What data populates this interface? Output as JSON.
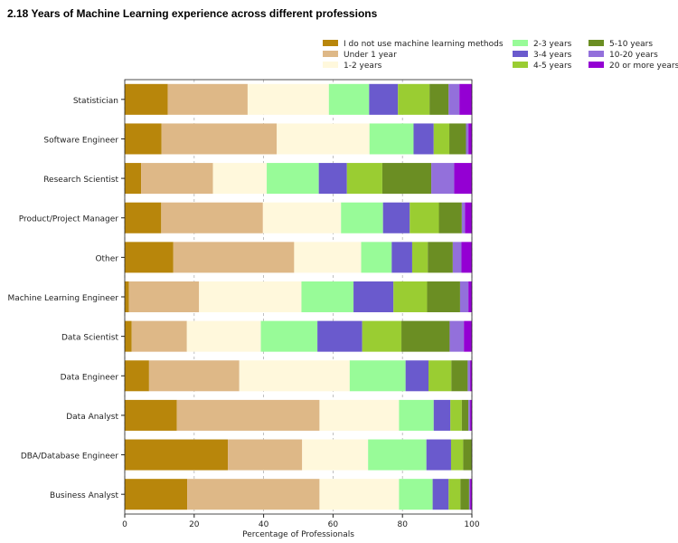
{
  "page": {
    "title": "2.18 Years of Machine Learning experience across different professions"
  },
  "chart_data": {
    "type": "bar",
    "orientation": "horizontal",
    "stacked": true,
    "title": "",
    "xlabel": "Percentage of Professionals",
    "ylabel": "",
    "xlim": [
      0,
      100
    ],
    "xticks": [
      0,
      20,
      40,
      60,
      80,
      100
    ],
    "grid": "vertical dashed",
    "legend_placement": "top-right",
    "categories": [
      "Statistician",
      "Software Engineer",
      "Research Scientist",
      "Product/Project Manager",
      "Other",
      "Machine Learning Engineer",
      "Data Scientist",
      "Data Engineer",
      "Data Analyst",
      "DBA/Database Engineer",
      "Business Analyst"
    ],
    "series": [
      {
        "name": "I do not use machine learning methods",
        "color": "#b8860b",
        "values": [
          12.4,
          10.6,
          4.7,
          10.5,
          14.0,
          1.2,
          2.0,
          7.0,
          15.0,
          29.7,
          18.0
        ]
      },
      {
        "name": "Under 1 year",
        "color": "#deb887",
        "values": [
          23.0,
          33.2,
          20.7,
          29.3,
          34.8,
          20.2,
          15.9,
          26.0,
          41.1,
          21.4,
          38.1
        ]
      },
      {
        "name": "1-2 years",
        "color": "#fff8dc",
        "values": [
          23.4,
          26.7,
          15.5,
          22.5,
          19.3,
          29.5,
          21.3,
          31.8,
          22.9,
          19.0,
          22.9
        ]
      },
      {
        "name": "2-3 years",
        "color": "#98fb98",
        "values": [
          11.6,
          12.7,
          15.0,
          12.1,
          8.8,
          15.0,
          16.3,
          16.1,
          10.0,
          16.8,
          9.7
        ]
      },
      {
        "name": "3-4 years",
        "color": "#6a5acd",
        "values": [
          8.3,
          5.8,
          8.1,
          7.7,
          5.9,
          11.5,
          12.9,
          6.6,
          4.8,
          7.1,
          4.6
        ]
      },
      {
        "name": "4-5 years",
        "color": "#9acd32",
        "values": [
          9.1,
          4.5,
          10.2,
          8.4,
          4.5,
          9.7,
          11.3,
          6.6,
          3.3,
          3.5,
          3.4
        ]
      },
      {
        "name": "5-10 years",
        "color": "#6b8e23",
        "values": [
          5.5,
          4.8,
          14.1,
          6.6,
          7.2,
          9.5,
          13.9,
          4.7,
          1.9,
          2.5,
          2.5
        ]
      },
      {
        "name": "10-20 years",
        "color": "#9370db",
        "values": [
          3.1,
          0.7,
          6.6,
          0.9,
          2.5,
          2.4,
          4.1,
          0.7,
          0.5,
          0.0,
          0.3
        ]
      },
      {
        "name": "20 or more years",
        "color": "#9400d3",
        "values": [
          3.6,
          1.0,
          5.1,
          2.0,
          3.0,
          1.0,
          2.3,
          0.5,
          0.5,
          0.0,
          0.5
        ]
      }
    ]
  }
}
